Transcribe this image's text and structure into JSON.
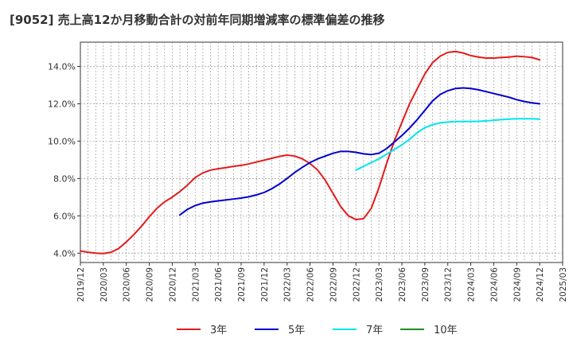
{
  "title": "[9052]  売上高12か月移動合計の対前年同期増減率の標準偏差の推移",
  "chart_data": {
    "type": "line",
    "title": "[9052]  売上高12か月移動合計の対前年同期増減率の標準偏差の推移",
    "xlabel": "",
    "ylabel": "",
    "ylim": [
      3.5,
      15.3
    ],
    "y_ticks": [
      4,
      6,
      8,
      10,
      12,
      14
    ],
    "y_tick_labels": [
      "4.0%",
      "6.0%",
      "8.0%",
      "10.0%",
      "12.0%",
      "14.0%"
    ],
    "x_ticks": [
      "2019/12",
      "2020/03",
      "2020/06",
      "2020/09",
      "2020/12",
      "2021/03",
      "2021/06",
      "2021/09",
      "2021/12",
      "2022/03",
      "2022/06",
      "2022/09",
      "2022/12",
      "2023/03",
      "2023/06",
      "2023/09",
      "2023/12",
      "2024/03",
      "2024/06",
      "2024/09",
      "2024/12",
      "2025/03"
    ],
    "grid": true,
    "legend_position": "bottom",
    "series": [
      {
        "name": "3年",
        "color": "#e41a1c",
        "x": [
          "2019/12",
          "2020/01",
          "2020/02",
          "2020/03",
          "2020/04",
          "2020/05",
          "2020/06",
          "2020/07",
          "2020/08",
          "2020/09",
          "2020/10",
          "2020/11",
          "2020/12",
          "2021/01",
          "2021/02",
          "2021/03",
          "2021/04",
          "2021/05",
          "2021/06",
          "2021/07",
          "2021/08",
          "2021/09",
          "2021/10",
          "2021/11",
          "2021/12",
          "2022/01",
          "2022/02",
          "2022/03",
          "2022/04",
          "2022/05",
          "2022/06",
          "2022/07",
          "2022/08",
          "2022/09",
          "2022/10",
          "2022/11",
          "2022/12",
          "2023/01",
          "2023/02",
          "2023/03",
          "2023/04",
          "2023/05",
          "2023/06",
          "2023/07",
          "2023/08",
          "2023/09",
          "2023/10",
          "2023/11",
          "2023/12",
          "2024/01",
          "2024/02",
          "2024/03",
          "2024/04",
          "2024/05",
          "2024/06",
          "2024/07",
          "2024/08",
          "2024/09",
          "2024/10",
          "2024/11",
          "2024/12"
        ],
        "values": [
          4.12,
          4.05,
          4.0,
          3.98,
          4.05,
          4.25,
          4.6,
          5.0,
          5.45,
          5.95,
          6.4,
          6.75,
          7.0,
          7.3,
          7.65,
          8.05,
          8.3,
          8.45,
          8.52,
          8.58,
          8.65,
          8.7,
          8.78,
          8.88,
          8.98,
          9.08,
          9.18,
          9.25,
          9.2,
          9.05,
          8.8,
          8.45,
          7.9,
          7.2,
          6.5,
          6.0,
          5.8,
          5.85,
          6.4,
          7.5,
          8.8,
          10.0,
          11.0,
          12.0,
          12.8,
          13.6,
          14.2,
          14.55,
          14.75,
          14.8,
          14.72,
          14.58,
          14.5,
          14.45,
          14.45,
          14.48,
          14.5,
          14.55,
          14.52,
          14.48,
          14.35
        ]
      },
      {
        "name": "5年",
        "color": "#0000cc",
        "x": [
          "2021/01",
          "2021/02",
          "2021/03",
          "2021/04",
          "2021/05",
          "2021/06",
          "2021/07",
          "2021/08",
          "2021/09",
          "2021/10",
          "2021/11",
          "2021/12",
          "2022/01",
          "2022/02",
          "2022/03",
          "2022/04",
          "2022/05",
          "2022/06",
          "2022/07",
          "2022/08",
          "2022/09",
          "2022/10",
          "2022/11",
          "2022/12",
          "2023/01",
          "2023/02",
          "2023/03",
          "2023/04",
          "2023/05",
          "2023/06",
          "2023/07",
          "2023/08",
          "2023/09",
          "2023/10",
          "2023/11",
          "2023/12",
          "2024/01",
          "2024/02",
          "2024/03",
          "2024/04",
          "2024/05",
          "2024/06",
          "2024/07",
          "2024/08",
          "2024/09",
          "2024/10",
          "2024/11",
          "2024/12"
        ],
        "values": [
          6.05,
          6.35,
          6.55,
          6.68,
          6.75,
          6.8,
          6.85,
          6.9,
          6.95,
          7.02,
          7.12,
          7.25,
          7.45,
          7.7,
          8.0,
          8.32,
          8.6,
          8.85,
          9.05,
          9.2,
          9.35,
          9.45,
          9.45,
          9.4,
          9.32,
          9.28,
          9.35,
          9.6,
          9.95,
          10.3,
          10.7,
          11.15,
          11.65,
          12.15,
          12.5,
          12.7,
          12.82,
          12.85,
          12.82,
          12.75,
          12.65,
          12.55,
          12.45,
          12.35,
          12.22,
          12.12,
          12.05,
          12.0
        ]
      },
      {
        "name": "7年",
        "color": "#00e5ee",
        "x": [
          "2022/12",
          "2023/01",
          "2023/02",
          "2023/03",
          "2023/04",
          "2023/05",
          "2023/06",
          "2023/07",
          "2023/08",
          "2023/09",
          "2023/10",
          "2023/11",
          "2023/12",
          "2024/01",
          "2024/02",
          "2024/03",
          "2024/04",
          "2024/05",
          "2024/06",
          "2024/07",
          "2024/08",
          "2024/09",
          "2024/10",
          "2024/11",
          "2024/12"
        ],
        "values": [
          8.45,
          8.65,
          8.85,
          9.05,
          9.3,
          9.55,
          9.8,
          10.1,
          10.45,
          10.72,
          10.88,
          10.98,
          11.02,
          11.05,
          11.05,
          11.05,
          11.06,
          11.08,
          11.12,
          11.15,
          11.18,
          11.2,
          11.2,
          11.2,
          11.18
        ]
      },
      {
        "name": "10年",
        "color": "#228b22",
        "x": [],
        "values": []
      }
    ]
  }
}
